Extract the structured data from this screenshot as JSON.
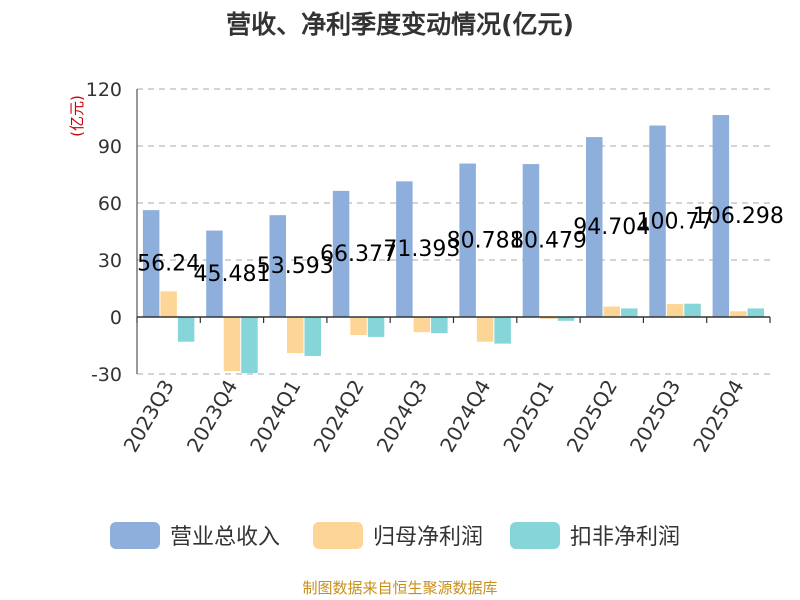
{
  "chart_data": {
    "type": "bar",
    "title": "营收、净利季度变动情况(亿元)",
    "unit_label": "(亿元)",
    "xlabel": "",
    "ylabel": "",
    "ylim": [
      -30,
      120
    ],
    "yticks": [
      -30,
      0,
      30,
      60,
      90,
      120
    ],
    "grid": true,
    "legend_position": "bottom",
    "categories": [
      "2023Q3",
      "2023Q4",
      "2024Q1",
      "2024Q2",
      "2024Q3",
      "2024Q4",
      "2025Q1",
      "2025Q2",
      "2025Q3",
      "2025Q4"
    ],
    "series": [
      {
        "name": "营业总收入",
        "color": "#8eaedb",
        "values": [
          56.24,
          45.481,
          53.593,
          66.377,
          71.393,
          80.781,
          80.479,
          94.704,
          100.77,
          106.298
        ]
      },
      {
        "name": "归母净利润",
        "color": "#fdd697",
        "values": [
          13.5,
          -28.5,
          -19.0,
          -9.5,
          -8.0,
          -13.0,
          -1.0,
          5.5,
          6.8,
          3.0
        ]
      },
      {
        "name": "扣非净利润",
        "color": "#86d5d8",
        "values": [
          -13.0,
          -29.5,
          -20.5,
          -10.5,
          -8.5,
          -14.0,
          -2.0,
          4.5,
          7.0,
          4.5
        ]
      }
    ],
    "data_labels": [
      "56.24",
      "45.481",
      "53.593",
      "66.377",
      "71.393",
      "80.781",
      "80.479",
      "94.704",
      "100.77",
      "106.298"
    ]
  },
  "source": "制图数据来自恒生聚源数据库",
  "colors": {
    "title": "#333333",
    "unit": "#cc0000",
    "axis": "#333333",
    "grid": "#bbbbbb",
    "source": "#c8901a"
  }
}
